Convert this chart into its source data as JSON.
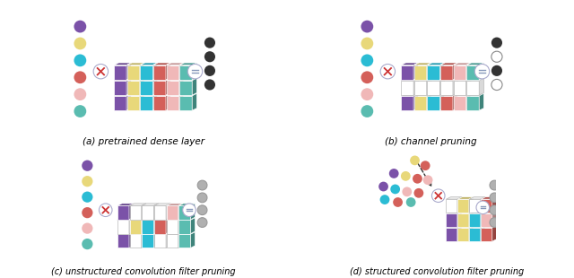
{
  "background_color": "#ffffff",
  "circle_colors": [
    "#7b52a8",
    "#e8d87a",
    "#2bbcd4",
    "#d4605a",
    "#f0b8b8",
    "#5abcb0"
  ],
  "col_colors_a": [
    "#7b52a8",
    "#e8d87a",
    "#2bbcd4",
    "#d4605a",
    "#f0b8b8",
    "#5abcb0"
  ],
  "dark_dot": "#333333",
  "gray_dot": "#b0b0b0",
  "white_dot": "#ffffff",
  "x_color": "#cc3333",
  "eq_color": "#8899bb",
  "border_color_light": "#aaaacc",
  "captions": [
    "(a) pretrained dense layer",
    "(b) channel pruning",
    "(c) unstructured convolution filter pruning",
    "(d) structured convolution filter pruning"
  ],
  "panel_a": {
    "input_circles": [
      "#7b52a8",
      "#e8d87a",
      "#2bbcd4",
      "#d4605a",
      "#f0b8b8",
      "#5abcb0"
    ],
    "grid": [
      [
        "#7b52a8",
        "#e8d87a",
        "#2bbcd4",
        "#d4605a",
        "#f0b8b8",
        "#5abcb0"
      ],
      [
        "#7b52a8",
        "#e8d87a",
        "#2bbcd4",
        "#d4605a",
        "#f0b8b8",
        "#5abcb0"
      ],
      [
        "#7b52a8",
        "#e8d87a",
        "#2bbcd4",
        "#d4605a",
        "#f0b8b8",
        "#5abcb0"
      ]
    ],
    "output_dots": [
      "#333333",
      "#333333",
      "#333333",
      "#333333"
    ],
    "output_edges": [
      "none",
      "none",
      "none",
      "none"
    ]
  },
  "panel_b": {
    "input_circles": [
      "#7b52a8",
      "#e8d87a",
      "#2bbcd4",
      "#d4605a",
      "#f0b8b8",
      "#5abcb0"
    ],
    "grid": [
      [
        "#7b52a8",
        "#e8d87a",
        "#2bbcd4",
        "#d4605a",
        "#f0b8b8",
        "#5abcb0"
      ],
      [
        null,
        null,
        null,
        null,
        null,
        null
      ],
      [
        "#7b52a8",
        "#e8d87a",
        "#2bbcd4",
        "#d4605a",
        "#f0b8b8",
        "#5abcb0"
      ]
    ],
    "output_dots": [
      "#333333",
      "#ffffff",
      "#333333",
      "#ffffff"
    ],
    "output_edges": [
      "none",
      "#888888",
      "none",
      "#888888"
    ]
  },
  "panel_c": {
    "input_circles": [
      "#7b52a8",
      "#e8d87a",
      "#2bbcd4",
      "#d4605a",
      "#f0b8b8",
      "#5abcb0"
    ],
    "grid": [
      [
        "#7b52a8",
        null,
        "#2bbcd4",
        null,
        null,
        "#5abcb0"
      ],
      [
        null,
        "#e8d87a",
        "#2bbcd4",
        "#d4605a",
        null,
        "#5abcb0"
      ],
      [
        "#7b52a8",
        null,
        null,
        null,
        "#f0b8b8",
        "#5abcb0"
      ]
    ],
    "output_dots": [
      "#b0b0b0",
      "#b0b0b0",
      "#b0b0b0",
      "#b0b0b0"
    ],
    "output_edges": [
      "#999999",
      "#999999",
      "#999999",
      "#999999"
    ]
  },
  "panel_d": {
    "scatter_colors": [
      "#7b52a8",
      "#e8d87a",
      "#7b52a8",
      "#2bbcd4",
      "#d4605a",
      "#f0b8b8",
      "#7b52a8",
      "#2bbcd4",
      "#d4605a",
      "#5abcb0",
      "#2bbcd4",
      "#d4605a",
      "#5abcb0"
    ],
    "grid": [
      [
        "#7b52a8",
        "#e8d87a",
        "#2bbcd4",
        "#d4605a"
      ],
      [
        "#7b52a8",
        "#e8d87a",
        "#2bbcd4",
        "#f0b8b8"
      ],
      [
        null,
        "#e8d87a",
        null,
        "#d4605a"
      ]
    ],
    "output_dots": [
      "#b0b0b0",
      "#b0b0b0",
      "#b0b0b0",
      "#b0b0b0"
    ],
    "output_edges": [
      "#999999",
      "#999999",
      "#999999",
      "#999999"
    ]
  }
}
